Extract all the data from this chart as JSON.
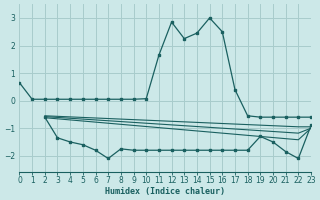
{
  "xlabel": "Humidex (Indice chaleur)",
  "bg_color": "#cce8e8",
  "grid_color": "#a8cccc",
  "line_color": "#1a6060",
  "xlim": [
    0,
    23
  ],
  "ylim": [
    -2.6,
    3.5
  ],
  "yticks": [
    -2,
    -1,
    0,
    1,
    2,
    3
  ],
  "xticks": [
    0,
    1,
    2,
    3,
    4,
    5,
    6,
    7,
    8,
    9,
    10,
    11,
    12,
    13,
    14,
    15,
    16,
    17,
    18,
    19,
    20,
    21,
    22,
    23
  ],
  "curve1_x": [
    0,
    1,
    2,
    3,
    4,
    5,
    6,
    7,
    8,
    9,
    10,
    11,
    12,
    13,
    14,
    15,
    16,
    17,
    18,
    19,
    20,
    21,
    22,
    23
  ],
  "curve1_y": [
    0.65,
    0.05,
    0.05,
    0.05,
    0.05,
    0.05,
    0.05,
    0.05,
    0.05,
    0.05,
    0.07,
    1.65,
    2.85,
    2.25,
    2.45,
    3.0,
    2.5,
    0.4,
    -0.55,
    -0.6,
    -0.6,
    -0.6,
    -0.6,
    -0.6
  ],
  "curve2_x": [
    2,
    3,
    4,
    5,
    6,
    7,
    8,
    9,
    10,
    11,
    12,
    13,
    14,
    15,
    16,
    17,
    18,
    19,
    20,
    21,
    22,
    23
  ],
  "curve2_y": [
    -0.6,
    -1.35,
    -1.5,
    -1.6,
    -1.8,
    -2.1,
    -1.75,
    -1.8,
    -1.8,
    -1.8,
    -1.8,
    -1.8,
    -1.8,
    -1.8,
    -1.8,
    -1.8,
    -1.8,
    -1.3,
    -1.5,
    -1.85,
    -2.1,
    -0.9
  ],
  "flat1_x": [
    2,
    3,
    4,
    5,
    6,
    7,
    8,
    9,
    10,
    11,
    12,
    13,
    14,
    15,
    16,
    17,
    18,
    19,
    20,
    21,
    22,
    23
  ],
  "flat1_y": [
    -0.55,
    -0.57,
    -0.59,
    -0.61,
    -0.63,
    -0.65,
    -0.67,
    -0.69,
    -0.71,
    -0.73,
    -0.75,
    -0.77,
    -0.79,
    -0.81,
    -0.83,
    -0.85,
    -0.87,
    -0.89,
    -0.91,
    -0.93,
    -0.95,
    -0.95
  ],
  "flat2_x": [
    2,
    3,
    4,
    5,
    6,
    7,
    8,
    9,
    10,
    11,
    12,
    13,
    14,
    15,
    16,
    17,
    18,
    19,
    20,
    21,
    22,
    23
  ],
  "flat2_y": [
    -0.58,
    -0.61,
    -0.64,
    -0.67,
    -0.7,
    -0.73,
    -0.76,
    -0.79,
    -0.82,
    -0.85,
    -0.88,
    -0.91,
    -0.94,
    -0.97,
    -1.0,
    -1.03,
    -1.06,
    -1.09,
    -1.12,
    -1.15,
    -1.18,
    -1.0
  ],
  "flat3_x": [
    2,
    3,
    4,
    5,
    6,
    7,
    8,
    9,
    10,
    11,
    12,
    13,
    14,
    15,
    16,
    17,
    18,
    19,
    20,
    21,
    22,
    23
  ],
  "flat3_y": [
    -0.62,
    -0.66,
    -0.7,
    -0.74,
    -0.78,
    -0.82,
    -0.86,
    -0.9,
    -0.94,
    -0.98,
    -1.02,
    -1.06,
    -1.1,
    -1.14,
    -1.18,
    -1.22,
    -1.26,
    -1.3,
    -1.34,
    -1.38,
    -1.42,
    -1.0
  ]
}
